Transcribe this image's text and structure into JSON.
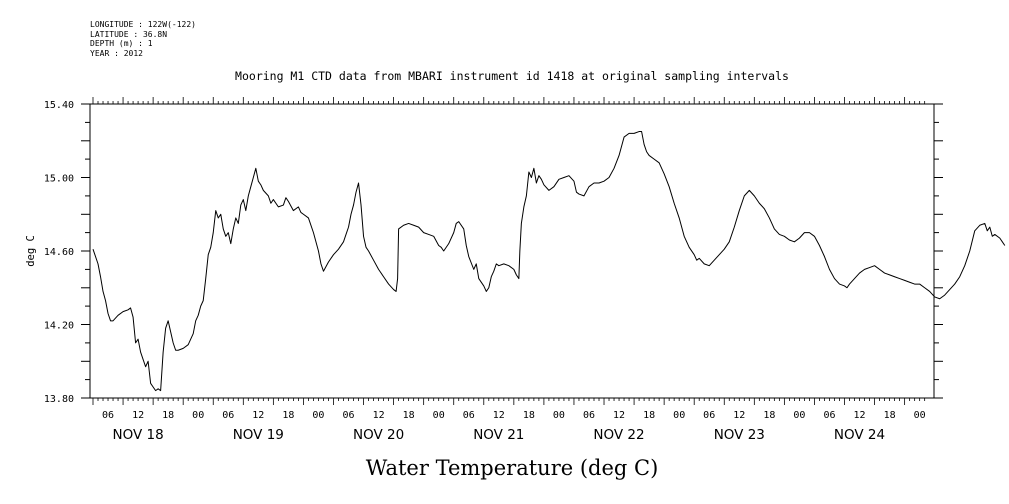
{
  "header": {
    "longitude": "LONGITUDE : 122W(-122)",
    "latitude": "LATITUDE : 36.8N",
    "depth": "DEPTH (m) : 1",
    "year": "YEAR : 2012"
  },
  "chart_data": {
    "type": "line",
    "title": "Mooring M1 CTD data from MBARI instrument id 1418 at original sampling intervals",
    "xlabel": "Water Temperature (deg C)",
    "ylabel": "deg C",
    "ylim": [
      13.8,
      15.4
    ],
    "xlim_hours": [
      0,
      166
    ],
    "y_ticks": [
      "13.80",
      "14.20",
      "14.60",
      "15.00",
      "15.40"
    ],
    "hour_tick_labels": [
      "06",
      "12",
      "18",
      "00",
      "06",
      "12",
      "18",
      "00",
      "06",
      "12",
      "18",
      "00",
      "06",
      "12",
      "18",
      "00",
      "06",
      "12",
      "18",
      "00",
      "06",
      "12",
      "18",
      "00",
      "06",
      "12",
      "18",
      "00"
    ],
    "day_labels": [
      "NOV 18",
      "NOV 19",
      "NOV 20",
      "NOV 21",
      "NOV 22",
      "NOV 23",
      "NOV 24"
    ],
    "grid": false,
    "series": [
      {
        "points": [
          [
            0,
            14.61
          ],
          [
            1,
            14.53
          ],
          [
            1.5,
            14.46
          ],
          [
            2,
            14.38
          ],
          [
            2.5,
            14.33
          ],
          [
            3,
            14.26
          ],
          [
            3.5,
            14.22
          ],
          [
            4,
            14.22
          ],
          [
            5,
            14.25
          ],
          [
            6,
            14.27
          ],
          [
            7,
            14.28
          ],
          [
            7.5,
            14.29
          ],
          [
            8,
            14.24
          ],
          [
            8.5,
            14.1
          ],
          [
            9,
            14.12
          ],
          [
            9.5,
            14.05
          ],
          [
            10,
            14.01
          ],
          [
            10.5,
            13.97
          ],
          [
            11,
            14.0
          ],
          [
            11.5,
            13.88
          ],
          [
            12,
            13.86
          ],
          [
            12.5,
            13.84
          ],
          [
            13,
            13.85
          ],
          [
            13.5,
            13.84
          ],
          [
            14,
            14.05
          ],
          [
            14.5,
            14.18
          ],
          [
            15,
            14.22
          ],
          [
            15.5,
            14.16
          ],
          [
            16,
            14.1
          ],
          [
            16.5,
            14.06
          ],
          [
            17,
            14.06
          ],
          [
            18,
            14.07
          ],
          [
            19,
            14.09
          ],
          [
            19.5,
            14.12
          ],
          [
            20,
            14.15
          ],
          [
            20.5,
            14.22
          ],
          [
            21,
            14.25
          ],
          [
            21.5,
            14.3
          ],
          [
            22,
            14.33
          ],
          [
            22.5,
            14.45
          ],
          [
            23,
            14.58
          ],
          [
            23.5,
            14.62
          ],
          [
            24,
            14.7
          ],
          [
            24.5,
            14.82
          ],
          [
            25,
            14.78
          ],
          [
            25.5,
            14.8
          ],
          [
            26,
            14.72
          ],
          [
            26.5,
            14.68
          ],
          [
            27,
            14.7
          ],
          [
            27.5,
            14.64
          ],
          [
            28,
            14.72
          ],
          [
            28.5,
            14.78
          ],
          [
            29,
            14.75
          ],
          [
            29.5,
            14.85
          ],
          [
            30,
            14.88
          ],
          [
            30.5,
            14.82
          ],
          [
            31,
            14.9
          ],
          [
            31.5,
            14.95
          ],
          [
            32,
            15.0
          ],
          [
            32.5,
            15.05
          ],
          [
            33,
            14.98
          ],
          [
            33.5,
            14.96
          ],
          [
            34,
            14.93
          ],
          [
            35,
            14.9
          ],
          [
            35.5,
            14.86
          ],
          [
            36,
            14.88
          ],
          [
            37,
            14.84
          ],
          [
            38,
            14.85
          ],
          [
            38.5,
            14.89
          ],
          [
            39,
            14.87
          ],
          [
            40,
            14.82
          ],
          [
            41,
            14.84
          ],
          [
            41.5,
            14.81
          ],
          [
            42,
            14.8
          ],
          [
            43,
            14.78
          ],
          [
            44,
            14.7
          ],
          [
            45,
            14.6
          ],
          [
            45.5,
            14.53
          ],
          [
            46,
            14.49
          ],
          [
            47,
            14.54
          ],
          [
            48,
            14.58
          ],
          [
            49,
            14.61
          ],
          [
            50,
            14.65
          ],
          [
            50.5,
            14.69
          ],
          [
            51,
            14.73
          ],
          [
            51.5,
            14.8
          ],
          [
            52,
            14.85
          ],
          [
            52.5,
            14.92
          ],
          [
            53,
            14.97
          ],
          [
            53.5,
            14.85
          ],
          [
            54,
            14.68
          ],
          [
            54.5,
            14.62
          ],
          [
            55,
            14.6
          ],
          [
            56,
            14.55
          ],
          [
            57,
            14.5
          ],
          [
            58,
            14.46
          ],
          [
            59,
            14.42
          ],
          [
            60,
            14.39
          ],
          [
            60.5,
            14.38
          ],
          [
            60.8,
            14.45
          ],
          [
            61,
            14.72
          ],
          [
            62,
            14.74
          ],
          [
            63,
            14.75
          ],
          [
            64,
            14.74
          ],
          [
            65,
            14.73
          ],
          [
            66,
            14.7
          ],
          [
            67,
            14.69
          ],
          [
            68,
            14.68
          ],
          [
            69,
            14.63
          ],
          [
            69.5,
            14.62
          ],
          [
            70,
            14.6
          ],
          [
            71,
            14.64
          ],
          [
            72,
            14.7
          ],
          [
            72.5,
            14.75
          ],
          [
            73,
            14.76
          ],
          [
            74,
            14.72
          ],
          [
            74.5,
            14.63
          ],
          [
            75,
            14.57
          ],
          [
            76,
            14.5
          ],
          [
            76.5,
            14.53
          ],
          [
            77,
            14.45
          ],
          [
            78,
            14.41
          ],
          [
            78.5,
            14.38
          ],
          [
            79,
            14.4
          ],
          [
            79.5,
            14.46
          ],
          [
            80,
            14.49
          ],
          [
            80.5,
            14.53
          ],
          [
            81,
            14.52
          ],
          [
            82,
            14.53
          ],
          [
            83,
            14.52
          ],
          [
            84,
            14.5
          ],
          [
            84.5,
            14.47
          ],
          [
            85,
            14.45
          ],
          [
            85.2,
            14.6
          ],
          [
            85.5,
            14.75
          ],
          [
            86,
            14.84
          ],
          [
            86.5,
            14.9
          ],
          [
            87,
            15.03
          ],
          [
            87.5,
            15.0
          ],
          [
            88,
            15.05
          ],
          [
            88.5,
            14.97
          ],
          [
            89,
            15.01
          ],
          [
            89.5,
            14.99
          ],
          [
            90,
            14.96
          ],
          [
            91,
            14.93
          ],
          [
            92,
            14.95
          ],
          [
            93,
            14.99
          ],
          [
            94,
            15.0
          ],
          [
            95,
            15.01
          ],
          [
            96,
            14.98
          ],
          [
            96.5,
            14.92
          ],
          [
            97,
            14.91
          ],
          [
            98,
            14.9
          ],
          [
            99,
            14.95
          ],
          [
            100,
            14.97
          ],
          [
            101,
            14.97
          ],
          [
            102,
            14.98
          ],
          [
            103,
            15.0
          ],
          [
            104,
            15.05
          ],
          [
            105,
            15.12
          ],
          [
            106,
            15.22
          ],
          [
            107,
            15.24
          ],
          [
            108,
            15.24
          ],
          [
            109,
            15.25
          ],
          [
            109.5,
            15.25
          ],
          [
            110,
            15.18
          ],
          [
            110.5,
            15.14
          ],
          [
            111,
            15.12
          ],
          [
            112,
            15.1
          ],
          [
            113,
            15.08
          ],
          [
            114,
            15.02
          ],
          [
            115,
            14.95
          ],
          [
            116,
            14.86
          ],
          [
            117,
            14.78
          ],
          [
            118,
            14.68
          ],
          [
            119,
            14.62
          ],
          [
            120,
            14.58
          ],
          [
            120.5,
            14.55
          ],
          [
            121,
            14.56
          ],
          [
            122,
            14.53
          ],
          [
            123,
            14.52
          ],
          [
            124,
            14.55
          ],
          [
            125,
            14.58
          ],
          [
            126,
            14.61
          ],
          [
            127,
            14.65
          ],
          [
            128,
            14.73
          ],
          [
            129,
            14.82
          ],
          [
            130,
            14.9
          ],
          [
            131,
            14.93
          ],
          [
            132,
            14.9
          ],
          [
            133,
            14.86
          ],
          [
            134,
            14.83
          ],
          [
            135,
            14.78
          ],
          [
            136,
            14.72
          ],
          [
            137,
            14.69
          ],
          [
            138,
            14.68
          ],
          [
            139,
            14.66
          ],
          [
            140,
            14.65
          ],
          [
            141,
            14.67
          ],
          [
            142,
            14.7
          ],
          [
            143,
            14.7
          ],
          [
            144,
            14.68
          ],
          [
            145,
            14.63
          ],
          [
            146,
            14.57
          ],
          [
            147,
            14.5
          ],
          [
            148,
            14.45
          ],
          [
            149,
            14.42
          ],
          [
            150,
            14.41
          ],
          [
            150.5,
            14.4
          ],
          [
            151,
            14.42
          ],
          [
            152,
            14.45
          ],
          [
            153,
            14.48
          ],
          [
            154,
            14.5
          ],
          [
            155,
            14.51
          ],
          [
            156,
            14.52
          ],
          [
            157,
            14.5
          ],
          [
            158,
            14.48
          ],
          [
            159,
            14.47
          ],
          [
            160,
            14.46
          ],
          [
            161,
            14.45
          ],
          [
            162,
            14.44
          ],
          [
            163,
            14.43
          ],
          [
            164,
            14.42
          ],
          [
            165,
            14.42
          ],
          [
            166,
            14.4
          ],
          [
            167,
            14.38
          ],
          [
            168,
            14.35
          ],
          [
            169,
            14.34
          ],
          [
            170,
            14.36
          ],
          [
            171,
            14.39
          ],
          [
            172,
            14.42
          ],
          [
            173,
            14.46
          ],
          [
            174,
            14.52
          ],
          [
            175,
            14.6
          ],
          [
            176,
            14.71
          ],
          [
            177,
            14.74
          ],
          [
            178,
            14.75
          ],
          [
            178.5,
            14.71
          ],
          [
            179,
            14.73
          ],
          [
            179.5,
            14.68
          ],
          [
            180,
            14.69
          ],
          [
            181,
            14.67
          ],
          [
            181.5,
            14.65
          ],
          [
            182,
            14.63
          ]
        ]
      }
    ]
  }
}
